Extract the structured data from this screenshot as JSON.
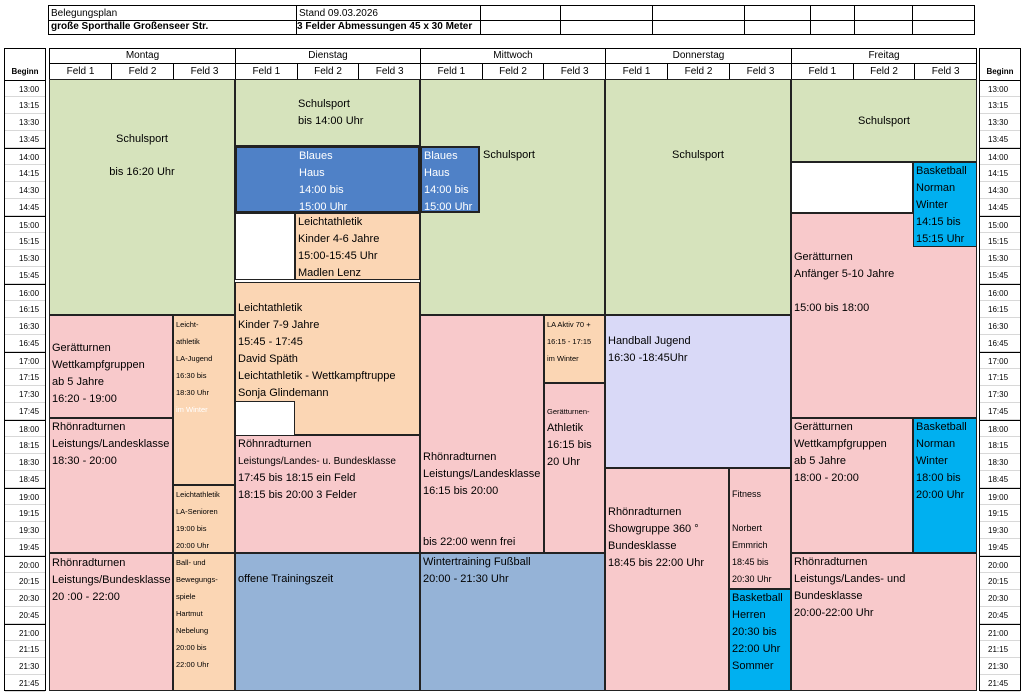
{
  "header": {
    "plan_label": "Belegungsplan",
    "hall": "große Sporthalle  Großenseer Str.",
    "stand": "Stand 09.03.2026",
    "dimensions": "3 Felder  Abmessungen 45 x 30 Meter"
  },
  "beginn_label": "Beginn",
  "days": [
    {
      "name": "Montag",
      "fields": [
        "Feld 1",
        "Feld 2",
        "Feld 3"
      ]
    },
    {
      "name": "Dienstag",
      "fields": [
        "Feld 1",
        "Feld 2",
        "Feld 3"
      ]
    },
    {
      "name": "Mittwoch",
      "fields": [
        "Feld 1",
        "Feld 2",
        "Feld 3"
      ]
    },
    {
      "name": "Donnerstag",
      "fields": [
        "Feld 1",
        "Feld 2",
        "Feld 3"
      ]
    },
    {
      "name": "Freitag",
      "fields": [
        "Feld 1",
        "Feld 2",
        "Feld 3"
      ]
    }
  ],
  "times": [
    "13:00",
    "13:15",
    "13:30",
    "13:45",
    "14:00",
    "14:15",
    "14:30",
    "14:45",
    "15:00",
    "15:15",
    "15:30",
    "15:45",
    "16:00",
    "16:15",
    "16:30",
    "16:45",
    "17:00",
    "17:15",
    "17:30",
    "17:45",
    "18:00",
    "18:15",
    "18:30",
    "18:45",
    "19:00",
    "19:15",
    "19:30",
    "19:45",
    "20:00",
    "20:15",
    "20:30",
    "20:45",
    "21:00",
    "21:15",
    "21:30",
    "21:45"
  ],
  "colors": {
    "schulsport": "#d6e3bc",
    "turnen": "#f8c9cb",
    "leichtathletik": "#fbd6b4",
    "blaues_haus": "#4f81c7",
    "offen": "#95b3d7",
    "handball": "#d9d9f7",
    "basketball": "#00b0f0"
  },
  "blocks": {
    "m1": {
      "title": "Schulsport",
      "sub": "bis 16:20 Uhr"
    },
    "m2": {
      "lines": [
        "Gerätturnen",
        "Wettkampfgruppen",
        "ab 5 Jahre",
        "16:20 - 19:00"
      ]
    },
    "m3": {
      "lines": [
        "Leicht-",
        "athletik",
        "LA-Jugend",
        "16:30 bis",
        "18:30 Uhr",
        "im Winter"
      ]
    },
    "m4": {
      "lines": [
        "Rhönradturnen",
        "Leistungs/Landesklasse",
        "18:30 - 20:00"
      ]
    },
    "m5": {
      "lines": [
        "Leichtathletik",
        "LA-Senioren",
        "19:00 bis",
        "20:00 Uhr"
      ]
    },
    "m6": {
      "lines": [
        "Rhönradturnen",
        "Leistungs/Bundesklasse",
        "20 :00 - 22:00"
      ]
    },
    "m7": {
      "lines": [
        "Ball- und",
        "Bewegungs-",
        "spiele",
        "Hartmut",
        "Nebelung",
        "20:00 bis",
        "22:00 Uhr"
      ]
    },
    "d1": {
      "lines": [
        "Schulsport",
        "bis 14:00 Uhr"
      ]
    },
    "d2": {
      "lines": [
        "Blaues",
        "Haus",
        "14:00 bis",
        "15:00 Uhr"
      ]
    },
    "d4": {
      "lines": [
        "Leichtathletik",
        "Kinder 4-6 Jahre",
        "15:00-15:45 Uhr",
        "Madlen Lenz"
      ]
    },
    "d5": {
      "lines": [
        "Leichtathletik",
        "Kinder 7-9 Jahre",
        "15:45 - 17:45",
        "David Späth",
        "Leichtathletik - Wettkampftruppe",
        "Sonja Glindemann"
      ]
    },
    "d7": {
      "lines": [
        "Röhnradturnen",
        "Leistungs/Landes- u. Bundesklasse",
        "17:45 bis 18:15 ein Feld",
        "18:15 bis 20:00 3 Felder"
      ]
    },
    "d8": {
      "lines": [
        "offene Trainingszeit"
      ]
    },
    "w1": {
      "title": "Schulsport"
    },
    "w2": {
      "lines": [
        "Blaues",
        "Haus",
        "14:00 bis",
        "15:00 Uhr"
      ]
    },
    "w3": {
      "lines": [
        "Rhönradturnen",
        "Leistungs/Landesklasse",
        "16:15 bis 20:00"
      ],
      "note": "bis 22:00 wenn frei"
    },
    "w4": {
      "lines": [
        "LA Aktiv 70 +",
        "16:15 - 17:15",
        "im Winter"
      ]
    },
    "w5": {
      "lines": [
        "Gerätturnen-",
        "Athletik",
        "16:15 bis",
        "20 Uhr"
      ]
    },
    "w6": {
      "lines": [
        "Wintertraining Fußball",
        "20:00 - 21:30 Uhr"
      ]
    },
    "t1": {
      "title": "Schulsport"
    },
    "t2": {
      "lines": [
        "Handball Jugend",
        "16:30 -18:45Uhr"
      ]
    },
    "t3": {
      "lines": [
        "Rhönradturnen",
        "Showgruppe 360 °",
        "Bundesklasse",
        "18:45 bis 22:00 Uhr"
      ]
    },
    "t4": {
      "lines": [
        "Fitness"
      ],
      "lines2": [
        "Norbert",
        "Emmrich",
        "18:45 bis",
        "20:30 Uhr"
      ]
    },
    "t5": {
      "lines": [
        "Basketball",
        "Herren",
        "20:30 bis",
        "22:00 Uhr",
        "Sommer"
      ]
    },
    "f1": {
      "title": "Schulsport"
    },
    "f3": {
      "lines": [
        "Basketball",
        "Norman",
        "Winter",
        "14:15 bis",
        "15:15 Uhr"
      ]
    },
    "f4": {
      "lines": [
        "Gerätturnen",
        "Anfänger 5-10 Jahre"
      ],
      "lines2": [
        "15:00 bis 18:00"
      ]
    },
    "f5": {
      "lines": [
        "Gerätturnen",
        "Wettkampfgruppen",
        "ab 5 Jahre",
        "18:00 - 20:00"
      ]
    },
    "f6": {
      "lines": [
        "Basketball",
        "Norman",
        "Winter",
        "18:00 bis",
        "20:00 Uhr"
      ]
    },
    "f7": {
      "lines": [
        "Rhönradturnen",
        "Leistungs/Landes- und",
        "Bundesklasse",
        "20:00-22:00 Uhr"
      ]
    }
  }
}
